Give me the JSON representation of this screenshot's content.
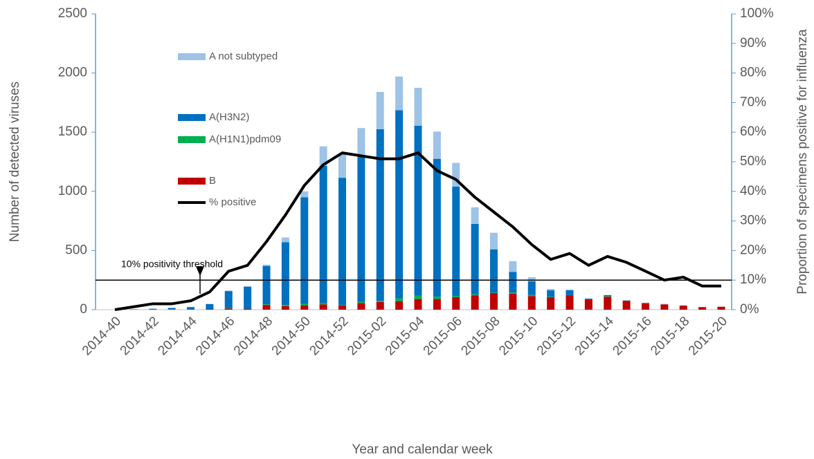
{
  "chart_data": {
    "type": "bar",
    "stacked": true,
    "x_label": "Year and calendar week",
    "y_label": "Number of detected viruses",
    "y2_label": "Proportion of specimens positive for influenza",
    "categories": [
      "2014-40",
      null,
      "2014-42",
      null,
      "2014-44",
      null,
      "2014-46",
      null,
      "2014-48",
      null,
      "2014-50",
      null,
      "2014-52",
      null,
      "2015-02",
      null,
      "2015-04",
      null,
      "2015-06",
      null,
      "2015-08",
      null,
      "2015-10",
      null,
      "2015-12",
      null,
      "2015-14",
      null,
      "2015-16",
      null,
      "2015-18",
      null,
      "2015-20"
    ],
    "series": [
      {
        "name": "B",
        "color": "#c00000",
        "values": [
          0,
          0,
          0,
          1,
          2,
          3,
          10,
          8,
          40,
          30,
          35,
          45,
          35,
          55,
          65,
          70,
          90,
          90,
          105,
          120,
          140,
          135,
          115,
          105,
          120,
          85,
          110,
          75,
          55,
          45,
          35,
          22,
          25
        ]
      },
      {
        "name": "A(H1N1)pdm09",
        "color": "#00b050",
        "values": [
          0,
          0,
          0,
          0,
          0,
          0,
          2,
          0,
          5,
          10,
          15,
          10,
          5,
          10,
          10,
          25,
          30,
          20,
          10,
          10,
          5,
          10,
          10,
          5,
          0,
          0,
          5,
          0,
          0,
          0,
          0,
          0,
          0
        ]
      },
      {
        "name": "A(H3N2)",
        "color": "#0070c0",
        "values": [
          0,
          3,
          8,
          14,
          20,
          45,
          145,
          185,
          325,
          530,
          900,
          1160,
          1075,
          1235,
          1450,
          1590,
          1435,
          1165,
          925,
          595,
          365,
          175,
          115,
          55,
          45,
          8,
          8,
          3,
          0,
          0,
          0,
          0,
          0
        ]
      },
      {
        "name": "A not subtyped",
        "color": "#9dc3e6",
        "values": [
          0,
          0,
          0,
          0,
          0,
          0,
          5,
          7,
          10,
          40,
          50,
          165,
          205,
          235,
          315,
          285,
          320,
          230,
          200,
          140,
          140,
          90,
          35,
          10,
          5,
          2,
          2,
          2,
          5,
          5,
          0,
          0,
          0
        ]
      },
      {
        "name": "% positive",
        "color": "#000000",
        "type": "line",
        "axis": "y2",
        "values": [
          0,
          1,
          2,
          2,
          3,
          6,
          13,
          15,
          23,
          32,
          42,
          49,
          53,
          52,
          51,
          51,
          53,
          47,
          44,
          38,
          33,
          28,
          22,
          17,
          19,
          15,
          18,
          16,
          13,
          10,
          11,
          8,
          8
        ]
      }
    ],
    "threshold": {
      "value": 10,
      "label": "10% positivity threshold"
    },
    "ylim": [
      0,
      2500
    ],
    "yticks": [
      0,
      500,
      1000,
      1500,
      2000,
      2500
    ],
    "y2lim": [
      0,
      100
    ],
    "y2ticks": [
      {
        "value": 0,
        "label": "0%"
      },
      {
        "value": 10,
        "label": "10%"
      },
      {
        "value": 20,
        "label": "20%"
      },
      {
        "value": 30,
        "label": "30%"
      },
      {
        "value": 40,
        "label": "40%"
      },
      {
        "value": 50,
        "label": "50%"
      },
      {
        "value": 60,
        "label": "60%"
      },
      {
        "value": 70,
        "label": "70%"
      },
      {
        "value": 80,
        "label": "80%"
      },
      {
        "value": 90,
        "label": "90%"
      },
      {
        "value": 100,
        "label": "100%"
      }
    ],
    "legend": "upper-left"
  }
}
